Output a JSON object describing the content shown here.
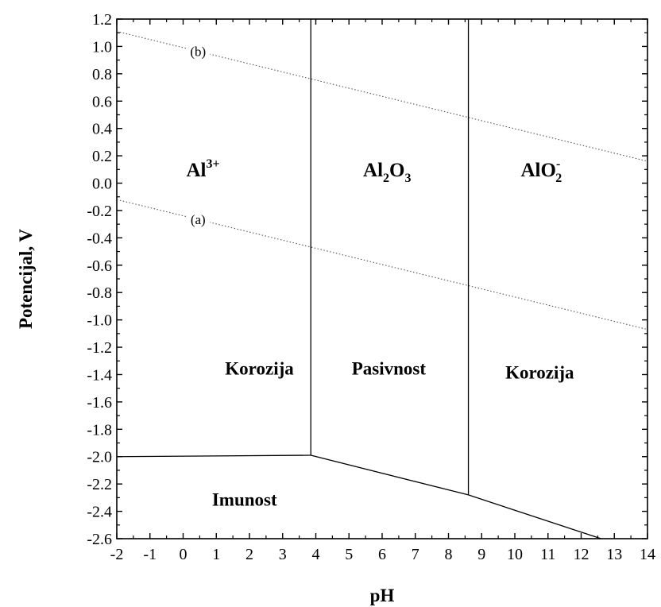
{
  "chart_data": {
    "type": "line",
    "xlabel": "pH",
    "ylabel": "Potencijal, V",
    "xlim": [
      -2,
      14
    ],
    "ylim": [
      -2.6,
      1.2
    ],
    "x_ticks": [
      -2,
      -1,
      0,
      1,
      2,
      3,
      4,
      5,
      6,
      7,
      8,
      9,
      10,
      11,
      12,
      13,
      14
    ],
    "y_ticks": [
      1.2,
      1.0,
      0.8,
      0.6,
      0.4,
      0.2,
      0.0,
      -0.2,
      -0.4,
      -0.6,
      -0.8,
      -1.0,
      -1.2,
      -1.4,
      -1.6,
      -1.8,
      -2.0,
      -2.2,
      -2.4,
      -2.6
    ],
    "x_tick_labels": [
      "-2",
      "-1",
      "0",
      "1",
      "2",
      "3",
      "4",
      "5",
      "6",
      "7",
      "8",
      "9",
      "10",
      "11",
      "12",
      "13",
      "14"
    ],
    "y_tick_labels": [
      "1.2",
      "1.0",
      "0.8",
      "0.6",
      "0.4",
      "0.2",
      "0.0",
      "-0.2",
      "-0.4",
      "-0.6",
      "-0.8",
      "-1.0",
      "-1.2",
      "-1.4",
      "-1.6",
      "-1.8",
      "-2.0",
      "-2.2",
      "-2.4",
      "-2.6"
    ],
    "boundaries": [
      {
        "points": [
          [
            -2,
            -2.0
          ],
          [
            3.85,
            -1.99
          ]
        ]
      },
      {
        "points": [
          [
            3.85,
            -1.99
          ],
          [
            8.6,
            -2.28
          ],
          [
            12.6,
            -2.6
          ]
        ]
      },
      {
        "points": [
          [
            3.85,
            -1.99
          ],
          [
            3.85,
            1.2
          ]
        ]
      },
      {
        "points": [
          [
            8.6,
            -2.28
          ],
          [
            8.6,
            1.2
          ]
        ]
      }
    ],
    "reference_lines": [
      {
        "tag": "(a)",
        "style": "dotted",
        "points": [
          [
            -2,
            -0.12
          ],
          [
            14,
            -1.07
          ]
        ]
      },
      {
        "tag": "(b)",
        "style": "dotted",
        "points": [
          [
            -2,
            1.11
          ],
          [
            14,
            0.16
          ]
        ]
      }
    ],
    "species_labels": [
      {
        "base": "Al",
        "sup": "3+",
        "at": [
          0.6,
          0.05
        ]
      },
      {
        "base": "Al",
        "sub": "2",
        "base2": "O",
        "sub2": "3",
        "at": [
          6.15,
          0.05
        ]
      },
      {
        "base": "AlO",
        "sup": "-",
        "sub": "2",
        "at": [
          10.8,
          0.05
        ]
      }
    ],
    "region_labels": [
      {
        "text": "Korozija",
        "at": [
          2.3,
          -1.4
        ]
      },
      {
        "text": "Pasivnost",
        "at": [
          6.2,
          -1.4
        ]
      },
      {
        "text": "Korozija",
        "at": [
          10.75,
          -1.43
        ]
      },
      {
        "text": "Imunost",
        "at": [
          1.85,
          -2.36
        ]
      }
    ],
    "grid": false,
    "colors": {
      "boundary": "#000000",
      "reference": "#555555"
    }
  }
}
